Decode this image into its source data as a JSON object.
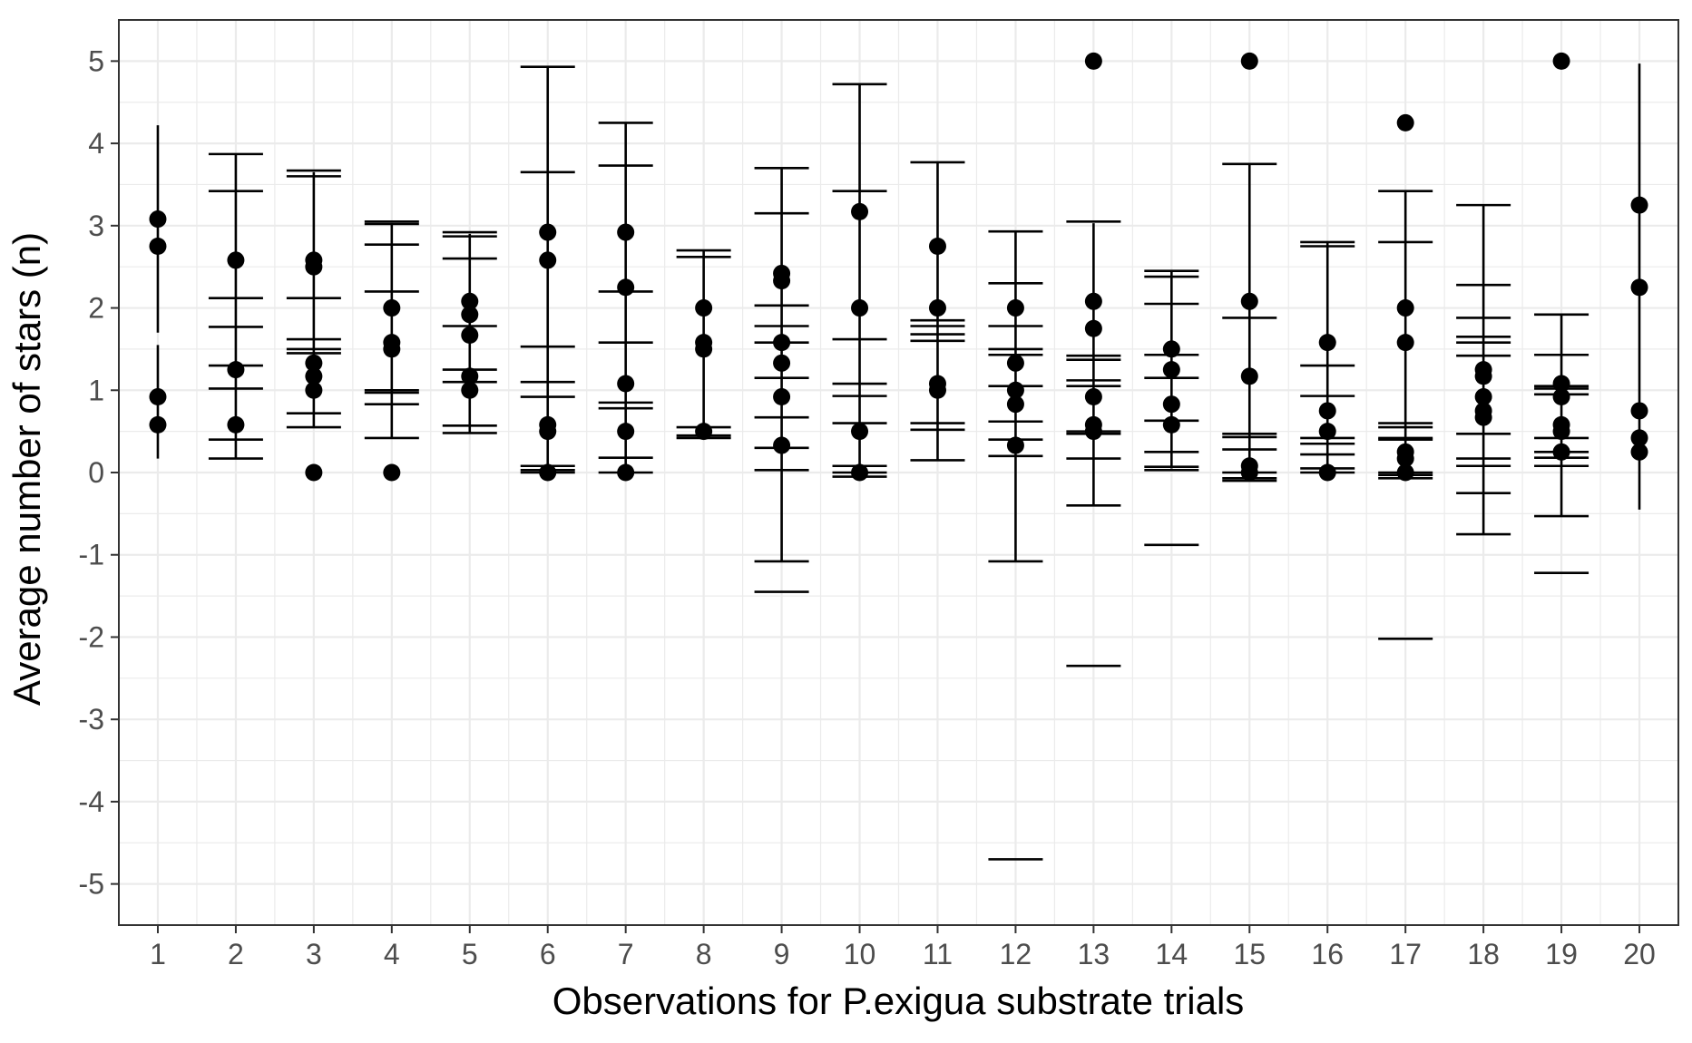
{
  "chart_data": {
    "type": "scatter",
    "title": "",
    "xlabel": "Observations for P.exigua substrate trials",
    "ylabel": "Average number of stars (n)",
    "xlim": [
      0.5,
      20.5
    ],
    "ylim": [
      -5.5,
      5.5
    ],
    "x_ticks": [
      1,
      2,
      3,
      4,
      5,
      6,
      7,
      8,
      9,
      10,
      11,
      12,
      13,
      14,
      15,
      16,
      17,
      18,
      19,
      20
    ],
    "y_ticks": [
      -5,
      -4,
      -3,
      -2,
      -1,
      0,
      1,
      2,
      3,
      4,
      5
    ],
    "grid": true,
    "legend": "none",
    "colors": {
      "points": "#000000",
      "errorbars": "#000000",
      "grid": "#ebebeb",
      "panel_border": "#333333",
      "background": "#ffffff"
    },
    "points": [
      {
        "x": 1,
        "ys": [
          3.08,
          2.75,
          0.92,
          0.58
        ]
      },
      {
        "x": 2,
        "ys": [
          2.58,
          1.25,
          0.58
        ]
      },
      {
        "x": 3,
        "ys": [
          2.58,
          2.5,
          1.33,
          1.17,
          1.0,
          0.0
        ]
      },
      {
        "x": 4,
        "ys": [
          2.0,
          1.58,
          1.5,
          0.0
        ]
      },
      {
        "x": 5,
        "ys": [
          2.08,
          1.92,
          1.67,
          1.17,
          1.0
        ]
      },
      {
        "x": 6,
        "ys": [
          2.92,
          2.58,
          0.58,
          0.5,
          0.0
        ]
      },
      {
        "x": 7,
        "ys": [
          2.92,
          2.25,
          1.08,
          0.5,
          0.0
        ]
      },
      {
        "x": 8,
        "ys": [
          2.0,
          1.58,
          1.5,
          0.5
        ]
      },
      {
        "x": 9,
        "ys": [
          2.42,
          2.33,
          1.58,
          1.33,
          0.92,
          0.33
        ]
      },
      {
        "x": 10,
        "ys": [
          3.17,
          2.0,
          0.5,
          0.0
        ]
      },
      {
        "x": 11,
        "ys": [
          2.75,
          2.0,
          1.08,
          1.0
        ]
      },
      {
        "x": 12,
        "ys": [
          2.0,
          1.33,
          1.0,
          0.83,
          0.33
        ]
      },
      {
        "x": 13,
        "ys": [
          5.0,
          2.08,
          1.75,
          0.92,
          0.58,
          0.5
        ]
      },
      {
        "x": 14,
        "ys": [
          1.5,
          1.25,
          0.83,
          0.58
        ]
      },
      {
        "x": 15,
        "ys": [
          5.0,
          2.08,
          1.17,
          0.08,
          0.0
        ]
      },
      {
        "x": 16,
        "ys": [
          1.58,
          0.75,
          0.5,
          0.0
        ]
      },
      {
        "x": 17,
        "ys": [
          4.25,
          2.0,
          1.58,
          0.25,
          0.17,
          0.0
        ]
      },
      {
        "x": 18,
        "ys": [
          1.25,
          1.17,
          0.92,
          0.75,
          0.67
        ]
      },
      {
        "x": 19,
        "ys": [
          5.0,
          1.08,
          0.92,
          0.58,
          0.5,
          0.25
        ]
      },
      {
        "x": 20,
        "ys": [
          3.25,
          2.25,
          0.75,
          0.42,
          0.25
        ]
      }
    ],
    "errorbars": [
      {
        "x": 1,
        "vlines": [
          [
            0.17,
            1.55
          ],
          [
            1.7,
            4.22
          ]
        ],
        "caps": []
      },
      {
        "x": 2,
        "vlines": [
          [
            0.17,
            3.87
          ]
        ],
        "caps": [
          3.87,
          3.42,
          2.12,
          1.77,
          1.3,
          1.02,
          0.4,
          0.17
        ]
      },
      {
        "x": 3,
        "vlines": [
          [
            0.55,
            3.65
          ]
        ],
        "caps": [
          3.67,
          3.6,
          2.12,
          1.62,
          1.5,
          1.45,
          0.72,
          0.55
        ]
      },
      {
        "x": 4,
        "vlines": [
          [
            0.42,
            3.03
          ]
        ],
        "caps": [
          3.05,
          3.02,
          2.77,
          2.2,
          1.0,
          0.97,
          0.83,
          0.42
        ]
      },
      {
        "x": 5,
        "vlines": [
          [
            0.47,
            2.9
          ]
        ],
        "caps": [
          2.92,
          2.87,
          2.6,
          1.78,
          1.25,
          1.1,
          0.57,
          0.48
        ]
      },
      {
        "x": 6,
        "vlines": [
          [
            0.0,
            4.93
          ]
        ],
        "caps": [
          4.93,
          3.65,
          1.53,
          1.1,
          0.92,
          0.08,
          0.03,
          0.0
        ]
      },
      {
        "x": 7,
        "vlines": [
          [
            0.0,
            4.25
          ]
        ],
        "caps": [
          4.25,
          3.73,
          2.2,
          1.58,
          0.85,
          0.78,
          0.18,
          0.0
        ]
      },
      {
        "x": 8,
        "vlines": [
          [
            0.42,
            2.7
          ]
        ],
        "caps": [
          2.7,
          2.62,
          0.55,
          0.45,
          0.42
        ]
      },
      {
        "x": 9,
        "vlines": [
          [
            -1.08,
            3.7
          ]
        ],
        "caps": [
          3.7,
          3.15,
          2.03,
          1.78,
          1.58,
          1.15,
          0.67,
          0.3,
          0.03,
          -1.08,
          -1.45
        ]
      },
      {
        "x": 10,
        "vlines": [
          [
            -0.05,
            4.72
          ]
        ],
        "caps": [
          4.72,
          3.42,
          1.62,
          1.08,
          0.93,
          0.6,
          0.08,
          0.0,
          -0.05
        ]
      },
      {
        "x": 11,
        "vlines": [
          [
            0.15,
            3.77
          ]
        ],
        "caps": [
          3.77,
          1.85,
          1.78,
          1.68,
          1.6,
          0.6,
          0.52,
          0.15
        ]
      },
      {
        "x": 12,
        "vlines": [
          [
            -1.08,
            2.93
          ]
        ],
        "caps": [
          2.93,
          2.3,
          1.78,
          1.5,
          1.43,
          1.05,
          0.62,
          0.4,
          0.2,
          -1.08,
          -4.7
        ]
      },
      {
        "x": 13,
        "vlines": [
          [
            -0.4,
            3.03
          ]
        ],
        "caps": [
          3.05,
          1.42,
          1.37,
          1.12,
          1.05,
          0.5,
          0.47,
          0.17,
          -0.4,
          -2.35
        ]
      },
      {
        "x": 14,
        "vlines": [
          [
            0.05,
            2.45
          ]
        ],
        "caps": [
          2.45,
          2.38,
          2.05,
          1.43,
          1.15,
          0.63,
          0.25,
          0.07,
          0.03,
          -0.88
        ]
      },
      {
        "x": 15,
        "vlines": [
          [
            -0.1,
            3.75
          ]
        ],
        "caps": [
          3.75,
          1.88,
          0.47,
          0.43,
          0.28,
          0.0,
          -0.07,
          -0.1
        ]
      },
      {
        "x": 16,
        "vlines": [
          [
            0.0,
            2.8
          ]
        ],
        "caps": [
          2.8,
          2.75,
          1.3,
          0.93,
          0.42,
          0.35,
          0.22,
          0.05,
          0.0
        ]
      },
      {
        "x": 17,
        "vlines": [
          [
            -0.05,
            3.42
          ]
        ],
        "caps": [
          3.42,
          2.8,
          0.6,
          0.55,
          0.42,
          0.4,
          0.0,
          -0.03,
          -0.07,
          -2.02
        ]
      },
      {
        "x": 18,
        "vlines": [
          [
            -0.75,
            3.25
          ]
        ],
        "caps": [
          3.25,
          2.28,
          1.88,
          1.65,
          1.58,
          1.42,
          0.47,
          0.17,
          0.08,
          -0.25,
          -0.75
        ]
      },
      {
        "x": 19,
        "vlines": [
          [
            -0.53,
            1.92
          ]
        ],
        "caps": [
          1.92,
          1.43,
          1.05,
          1.02,
          0.95,
          0.42,
          0.25,
          0.18,
          0.08,
          -0.53,
          -1.22
        ]
      },
      {
        "x": 20,
        "vlines": [
          [
            -0.45,
            4.97
          ]
        ],
        "caps": []
      }
    ]
  }
}
